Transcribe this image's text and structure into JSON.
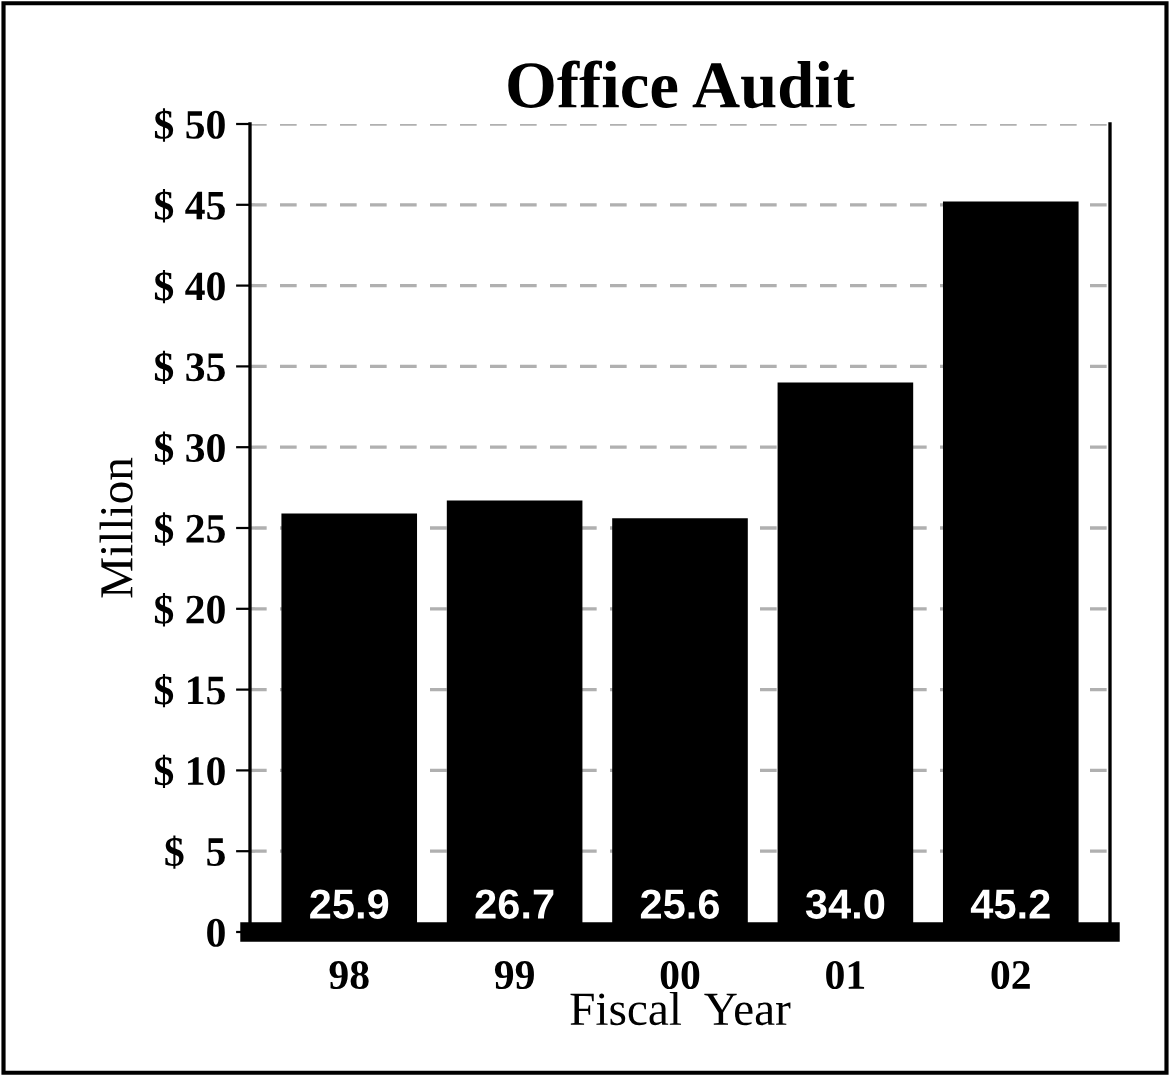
{
  "chart_data": {
    "type": "bar",
    "title": "Office Audit",
    "xlabel": "Fiscal  Year",
    "ylabel": "Million",
    "categories": [
      "98",
      "99",
      "00",
      "01",
      "02"
    ],
    "values": [
      25.9,
      26.7,
      25.6,
      34.0,
      45.2
    ],
    "value_labels": [
      "25.9",
      "26.7",
      "25.6",
      "34.0",
      "45.2"
    ],
    "color": "#000000",
    "ylim": [
      0,
      50
    ],
    "yticks": [
      0,
      {
        "value": 5,
        "label": "$  5"
      },
      {
        "value": 10,
        "label": "$ 10"
      },
      {
        "value": 15,
        "label": "$ 15"
      },
      {
        "value": 20,
        "label": "$ 20"
      },
      {
        "value": 25,
        "label": "$ 25"
      },
      {
        "value": 30,
        "label": "$ 30"
      },
      {
        "value": 35,
        "label": "$ 35"
      },
      {
        "value": 40,
        "label": "$ 40"
      },
      {
        "value": 45,
        "label": "$ 45"
      },
      {
        "value": 50,
        "label": "$ 50"
      }
    ],
    "grid": "y",
    "line_style": "dashed"
  }
}
